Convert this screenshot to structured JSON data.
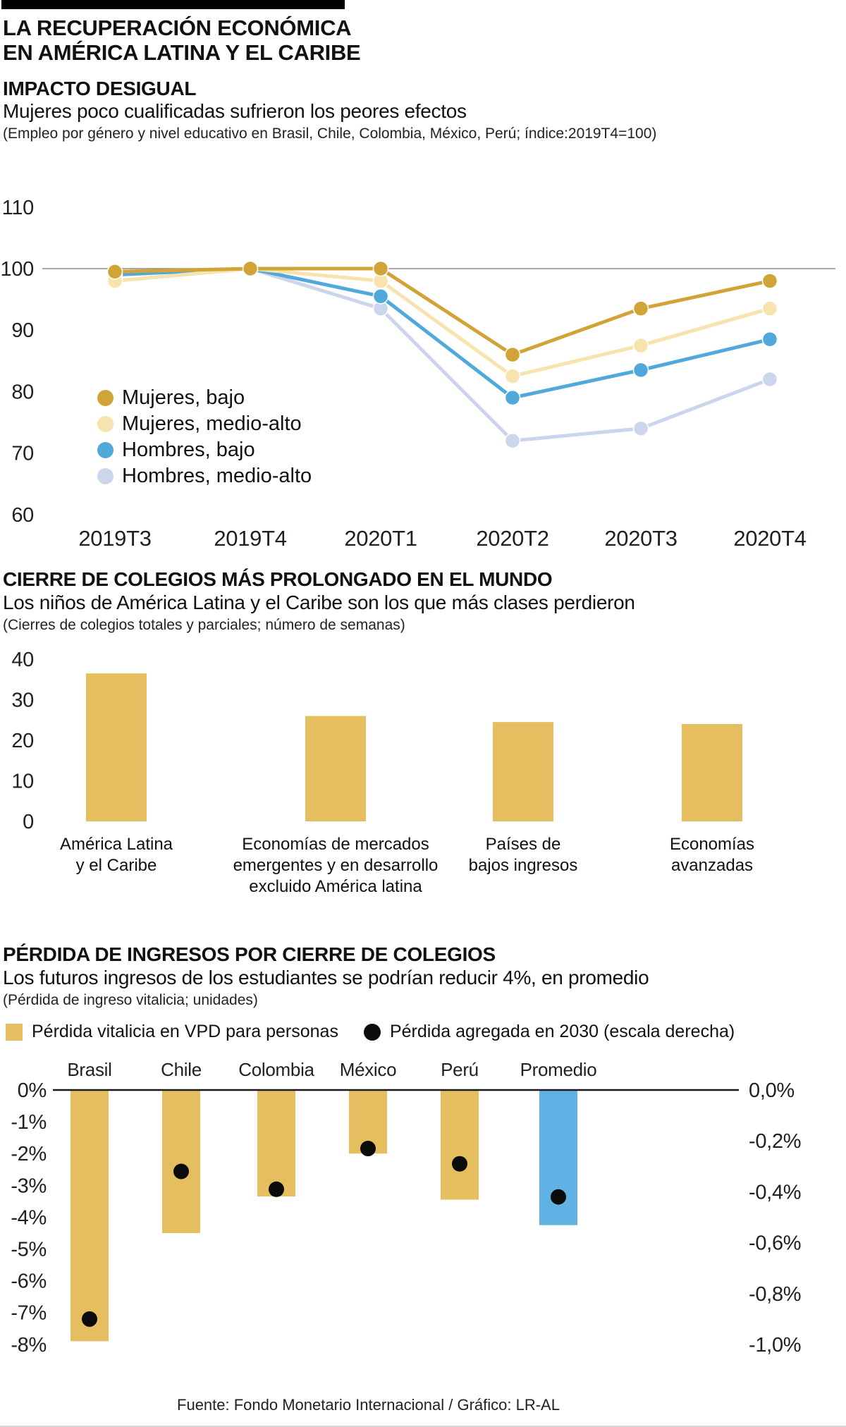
{
  "header": {
    "title": "LA RECUPERACIÓN ECONÓMICA\nEN AMÉRICA LATINA Y EL CARIBE"
  },
  "colors": {
    "gold_dark": "#D1A437",
    "cream": "#F6E3AE",
    "blue": "#50A8DB",
    "lavender": "#CBD6EC",
    "bar_gold": "#E4BE5F",
    "bar_blue": "#61B2E4",
    "dot_black": "#0B0B0B",
    "refline": "#8B8B8B",
    "axis_black": "#1A1A1A"
  },
  "chart_data": [
    {
      "id": "employment",
      "type": "line",
      "title": "IMPACTO DESIGUAL",
      "subtitle": "Mujeres poco cualificadas sufrieron los peores efectos",
      "note": "(Empleo por género y nivel educativo en Brasil, Chile, Colombia, México, Perú; índice:2019T4=100)",
      "x": [
        "2019T3",
        "2019T4",
        "2020T1",
        "2020T2",
        "2020T3",
        "2020T4"
      ],
      "ylim": [
        60,
        110
      ],
      "yticks": [
        110,
        100,
        90,
        80,
        70,
        60
      ],
      "refline": 100,
      "grid": "reference line at 100 only",
      "legend_position": "inside bottom-left",
      "series": [
        {
          "name": "Mujeres, bajo",
          "color": "gold_dark",
          "values": [
            99.5,
            100,
            100,
            86,
            93.5,
            98
          ]
        },
        {
          "name": "Mujeres, medio-alto",
          "color": "cream",
          "values": [
            98,
            100,
            98,
            82.5,
            87.5,
            93.5
          ]
        },
        {
          "name": "Hombres, bajo",
          "color": "blue",
          "values": [
            99,
            100,
            95.5,
            79,
            83.5,
            88.5
          ]
        },
        {
          "name": "Hombres, medio-alto",
          "color": "lavender",
          "values": [
            98,
            100,
            93.5,
            72,
            74,
            82
          ]
        }
      ]
    },
    {
      "id": "school_closures",
      "type": "bar",
      "title": "CIERRE DE COLEGIOS MÁS PROLONGADO EN EL MUNDO",
      "subtitle": "Los niños de América Latina y el Caribe son los que más clases perdieron",
      "note": "(Cierres de colegios totales y parciales; número de semanas)",
      "categories": [
        "América Latina\ny el Caribe",
        "Economías de mercados\nemergentes y en desarrollo\nexcluido América latina",
        "Países de\nbajos ingresos",
        "Economías\navanzadas"
      ],
      "values": [
        36.5,
        26,
        24.5,
        24
      ],
      "ylim": [
        0,
        40
      ],
      "yticks": [
        40,
        30,
        20,
        10,
        0
      ],
      "bar_color": "bar_gold"
    },
    {
      "id": "income_loss",
      "type": "bar+dot",
      "title": "PÉRDIDA DE INGRESOS POR CIERRE DE COLEGIOS",
      "subtitle": "Los futuros ingresos de los estudiantes se podrían reducir 4%, en promedio",
      "note": "(Pérdida de ingreso vitalicia; unidades)",
      "legend": [
        {
          "label": "Pérdida vitalicia en VPD para personas",
          "marker": "square",
          "color": "bar_gold"
        },
        {
          "label": "Pérdida agregada en 2030 (escala derecha)",
          "marker": "circle",
          "color": "dot_black"
        }
      ],
      "categories": [
        "Brasil",
        "Chile",
        "Colombia",
        "México",
        "Perú",
        "Promedio"
      ],
      "bar_values_left_pct": [
        -7.9,
        -4.5,
        -3.35,
        -2.0,
        -3.45,
        -4.25
      ],
      "bar_colors": [
        "bar_gold",
        "bar_gold",
        "bar_gold",
        "bar_gold",
        "bar_gold",
        "bar_blue"
      ],
      "dot_values_right": [
        -0.9,
        -0.32,
        -0.39,
        -0.23,
        -0.29,
        -0.42
      ],
      "left_ticks": [
        "0%",
        "-1%",
        "-2%",
        "-3%",
        "-4%",
        "-5%",
        "-6%",
        "-7%",
        "-8%"
      ],
      "right_ticks": [
        "0,0%",
        "-0,2%",
        "-0,4%",
        "-0,6%",
        "-0,8%",
        "-1,0%"
      ],
      "left_ylim": [
        0,
        -8
      ],
      "right_ylim": [
        0,
        -1
      ]
    }
  ],
  "footer": {
    "source": "Fuente: Fondo Monetario Internacional / Gráfico: LR-AL"
  }
}
